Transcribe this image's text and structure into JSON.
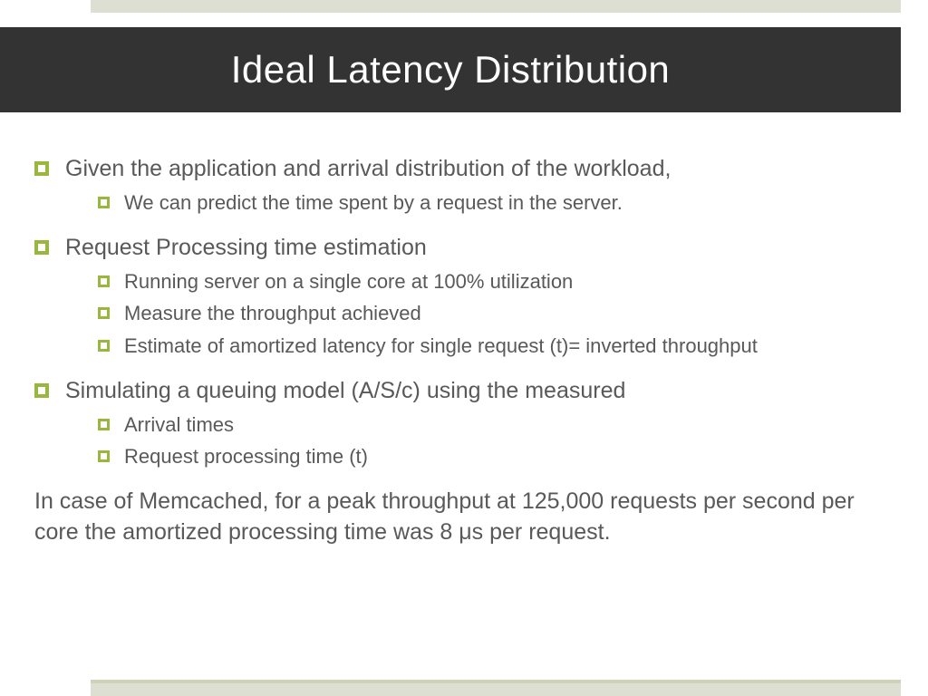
{
  "slide": {
    "title": "Ideal Latency Distribution",
    "colors": {
      "title_bg": "#333333",
      "title_text": "#ffffff",
      "bullet_accent": "#99b63f",
      "body_text": "#595959",
      "decor_bar": "#dcdfd1",
      "decor_bar_border": "#cdd3b9",
      "background": "#ffffff"
    },
    "typography": {
      "title_fontsize": 42,
      "l1_fontsize": 25,
      "l2_fontsize": 22,
      "footer_fontsize": 25,
      "font_family": "Century Gothic"
    },
    "groups": [
      {
        "heading": "Given the application and arrival distribution of the workload,",
        "subs": [
          "We can predict the time spent by a request in the server."
        ]
      },
      {
        "heading": "Request Processing time estimation",
        "subs": [
          "Running server on a single core at 100% utilization",
          "Measure the throughput achieved",
          "Estimate of amortized latency for single request (t)= inverted throughput"
        ]
      },
      {
        "heading": "Simulating a queuing model (A/S/c) using the measured",
        "subs": [
          "Arrival times",
          "Request processing time (t)"
        ]
      }
    ],
    "footer": "In case of Memcached, for a peak throughput at 125,000 requests per second per core the amortized processing time was 8 μs per request."
  }
}
